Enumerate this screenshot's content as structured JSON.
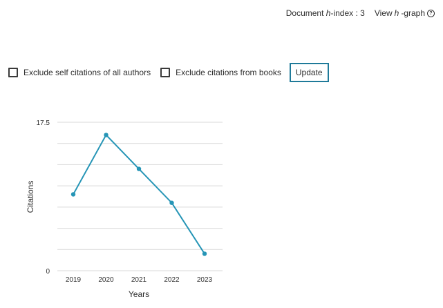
{
  "header": {
    "hindex_prefix": "Document ",
    "hindex_italic": "h",
    "hindex_suffix": "-index : 3",
    "hgraph_prefix": "View ",
    "hgraph_italic": "h",
    "hgraph_suffix": "-graph",
    "help_glyph": "?"
  },
  "controls": {
    "exclude_self_label": "Exclude self citations of all authors",
    "exclude_books_label": "Exclude citations from books",
    "update_label": "Update"
  },
  "colors": {
    "line": "#2695b6",
    "grid": "#d9d9d9",
    "button_border": "#1f7a99"
  },
  "chart_data": {
    "type": "line",
    "x": [
      "2019",
      "2020",
      "2021",
      "2022",
      "2023"
    ],
    "series": [
      {
        "values": [
          9,
          16,
          12,
          8,
          2
        ]
      }
    ],
    "ytick_labels": [
      "0",
      "17.5"
    ],
    "ylim": [
      0,
      17.5
    ],
    "xlabel": "Years",
    "ylabel": "Citations",
    "grid": true,
    "legend": "none"
  }
}
